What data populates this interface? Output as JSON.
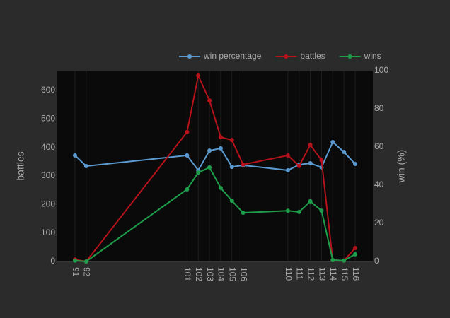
{
  "chart_data": {
    "type": "line",
    "x": [
      91,
      92,
      101,
      102,
      103,
      104,
      105,
      106,
      110,
      111,
      112,
      113,
      114,
      115,
      116
    ],
    "xlim": [
      89.36,
      117.58
    ],
    "xticks": [
      91,
      92,
      101,
      102,
      103,
      104,
      105,
      106,
      110,
      111,
      112,
      113,
      114,
      115,
      116
    ],
    "xgrid": true,
    "y_label": "battles",
    "y2_label": "win (%)",
    "ylim": [
      0,
      669.4
    ],
    "yticks": [
      0,
      100,
      200,
      300,
      400,
      500,
      600
    ],
    "y2lim": [
      0,
      100
    ],
    "y2ticks": [
      0,
      20,
      40,
      60,
      80,
      100
    ],
    "legend": "top-right",
    "series": [
      {
        "name": "win percentage",
        "color": "#5b9bd1",
        "axis": "y2",
        "values": [
          55.6,
          50,
          55.6,
          47.8,
          58.1,
          59.3,
          49.6,
          50.4,
          47.8,
          50.7,
          51.5,
          49.3,
          62.6,
          57.4,
          51.1
        ]
      },
      {
        "name": "battles",
        "color": "#b5121b",
        "values": [
          7,
          0,
          454,
          652,
          565,
          436,
          426,
          340,
          372,
          335,
          409,
          355,
          5,
          3,
          47
        ]
      },
      {
        "name": "wins",
        "color": "#1e9e4a",
        "values": [
          3,
          0,
          253,
          312,
          330,
          258,
          213,
          171,
          178,
          174,
          211,
          178,
          5,
          3,
          25
        ]
      }
    ]
  }
}
